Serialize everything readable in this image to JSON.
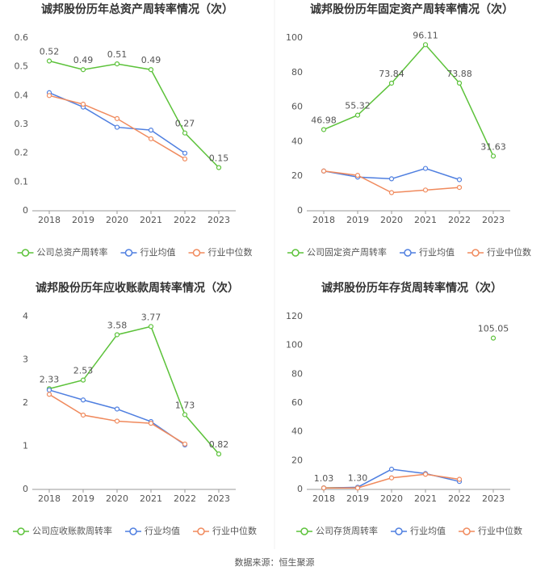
{
  "chart_data": [
    {
      "type": "line",
      "title": "诚邦股份历年总资产周转率情况（次）",
      "categories": [
        "2018",
        "2019",
        "2020",
        "2021",
        "2022",
        "2023"
      ],
      "series": [
        {
          "name": "公司总资产周转率",
          "color": "#5cc23a",
          "values": [
            0.52,
            0.49,
            0.51,
            0.49,
            0.27,
            0.15
          ],
          "value_labels": [
            "0.52",
            "0.49",
            "0.51",
            "0.49",
            "0.27",
            "0.15"
          ]
        },
        {
          "name": "行业均值",
          "color": "#4f7fe0",
          "values": [
            0.41,
            0.36,
            0.29,
            0.28,
            0.2,
            null
          ]
        },
        {
          "name": "行业中位数",
          "color": "#f08a5d",
          "values": [
            0.4,
            0.37,
            0.32,
            0.25,
            0.18,
            null
          ]
        }
      ],
      "ylim": [
        0,
        0.6
      ],
      "yticks": [
        0,
        0.1,
        0.2,
        0.3,
        0.4,
        0.5,
        0.6
      ],
      "grid": false,
      "legend": "bottom"
    },
    {
      "type": "line",
      "title": "诚邦股份历年固定资产周转率情况（次）",
      "categories": [
        "2018",
        "2019",
        "2020",
        "2021",
        "2022",
        "2023"
      ],
      "series": [
        {
          "name": "公司固定资产周转率",
          "color": "#5cc23a",
          "values": [
            46.98,
            55.32,
            73.84,
            96.11,
            73.88,
            31.63
          ],
          "value_labels": [
            "46.98",
            "55.32",
            "73.84",
            "96.11",
            "73.88",
            "31.63"
          ]
        },
        {
          "name": "行业均值",
          "color": "#4f7fe0",
          "values": [
            23,
            19.5,
            18.5,
            24.5,
            18,
            null
          ]
        },
        {
          "name": "行业中位数",
          "color": "#f08a5d",
          "values": [
            23,
            20.5,
            10.5,
            12,
            13.5,
            null
          ]
        }
      ],
      "ylim": [
        0,
        100
      ],
      "yticks": [
        0,
        20,
        40,
        60,
        80,
        100
      ],
      "grid": false,
      "legend": "bottom"
    },
    {
      "type": "line",
      "title": "诚邦股份历年应收账款周转率情况（次）",
      "categories": [
        "2018",
        "2019",
        "2020",
        "2021",
        "2022",
        "2023"
      ],
      "series": [
        {
          "name": "公司应收账款周转率",
          "color": "#5cc23a",
          "values": [
            2.33,
            2.53,
            3.58,
            3.77,
            1.73,
            0.82
          ],
          "value_labels": [
            "2.33",
            "2.53",
            "3.58",
            "3.77",
            "1.73",
            "0.82"
          ]
        },
        {
          "name": "行业均值",
          "color": "#4f7fe0",
          "values": [
            2.3,
            2.07,
            1.86,
            1.57,
            1.03,
            null
          ]
        },
        {
          "name": "行业中位数",
          "color": "#f08a5d",
          "values": [
            2.2,
            1.72,
            1.58,
            1.53,
            1.05,
            null
          ]
        }
      ],
      "ylim": [
        0,
        4
      ],
      "yticks": [
        0,
        1,
        2,
        3,
        4
      ],
      "grid": false,
      "legend": "bottom"
    },
    {
      "type": "line",
      "title": "诚邦股份历年存货周转率情况（次）",
      "categories": [
        "2018",
        "2019",
        "2020",
        "2021",
        "2022",
        "2023"
      ],
      "series": [
        {
          "name": "公司存货周转率",
          "color": "#5cc23a",
          "values": [
            1.03,
            1.3,
            null,
            null,
            null,
            105.05
          ],
          "value_labels": [
            "1.03",
            "1.30",
            null,
            null,
            null,
            "105.05"
          ]
        },
        {
          "name": "行业均值",
          "color": "#4f7fe0",
          "values": [
            1,
            1.5,
            14,
            11,
            5.5,
            null
          ]
        },
        {
          "name": "行业中位数",
          "color": "#f08a5d",
          "values": [
            1,
            1,
            8,
            10.5,
            7,
            null
          ]
        }
      ],
      "ylim": [
        0,
        120
      ],
      "yticks": [
        0,
        20,
        40,
        60,
        80,
        100,
        120
      ],
      "grid": false,
      "legend": "bottom"
    }
  ],
  "source": "数据来源：恒生聚源"
}
